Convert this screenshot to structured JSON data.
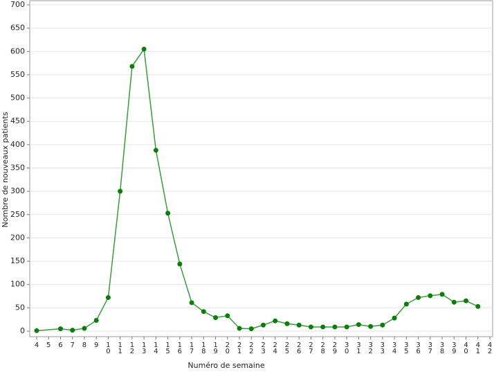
{
  "chart_data": {
    "type": "line",
    "xlabel": "Numéro de semaine",
    "ylabel": "Nombre de nouveaux patients",
    "x": [
      4,
      6,
      7,
      8,
      9,
      10,
      11,
      12,
      13,
      14,
      15,
      16,
      17,
      18,
      19,
      20,
      21,
      22,
      23,
      24,
      25,
      26,
      27,
      28,
      29,
      30,
      31,
      32,
      33,
      34,
      35,
      36,
      37,
      38,
      39,
      40,
      41
    ],
    "values": [
      1,
      5,
      2,
      6,
      23,
      72,
      300,
      568,
      605,
      388,
      253,
      144,
      61,
      42,
      29,
      33,
      6,
      5,
      13,
      22,
      16,
      13,
      9,
      9,
      9,
      9,
      14,
      10,
      13,
      28,
      58,
      72,
      76,
      79,
      62,
      65,
      53
    ],
    "color": "#3a9a3a",
    "marker_color": "#0b7d0b",
    "xlim": [
      4,
      42
    ],
    "xticks": [
      4,
      5,
      6,
      7,
      8,
      9,
      10,
      11,
      12,
      13,
      14,
      15,
      16,
      17,
      18,
      19,
      20,
      21,
      22,
      23,
      24,
      25,
      26,
      27,
      28,
      29,
      30,
      31,
      32,
      33,
      34,
      35,
      36,
      37,
      38,
      39,
      40,
      41,
      42
    ],
    "ylim": [
      0,
      700
    ],
    "yticks": [
      0,
      50,
      100,
      150,
      200,
      250,
      300,
      350,
      400,
      450,
      500,
      550,
      600,
      650,
      700
    ],
    "grid": true
  }
}
